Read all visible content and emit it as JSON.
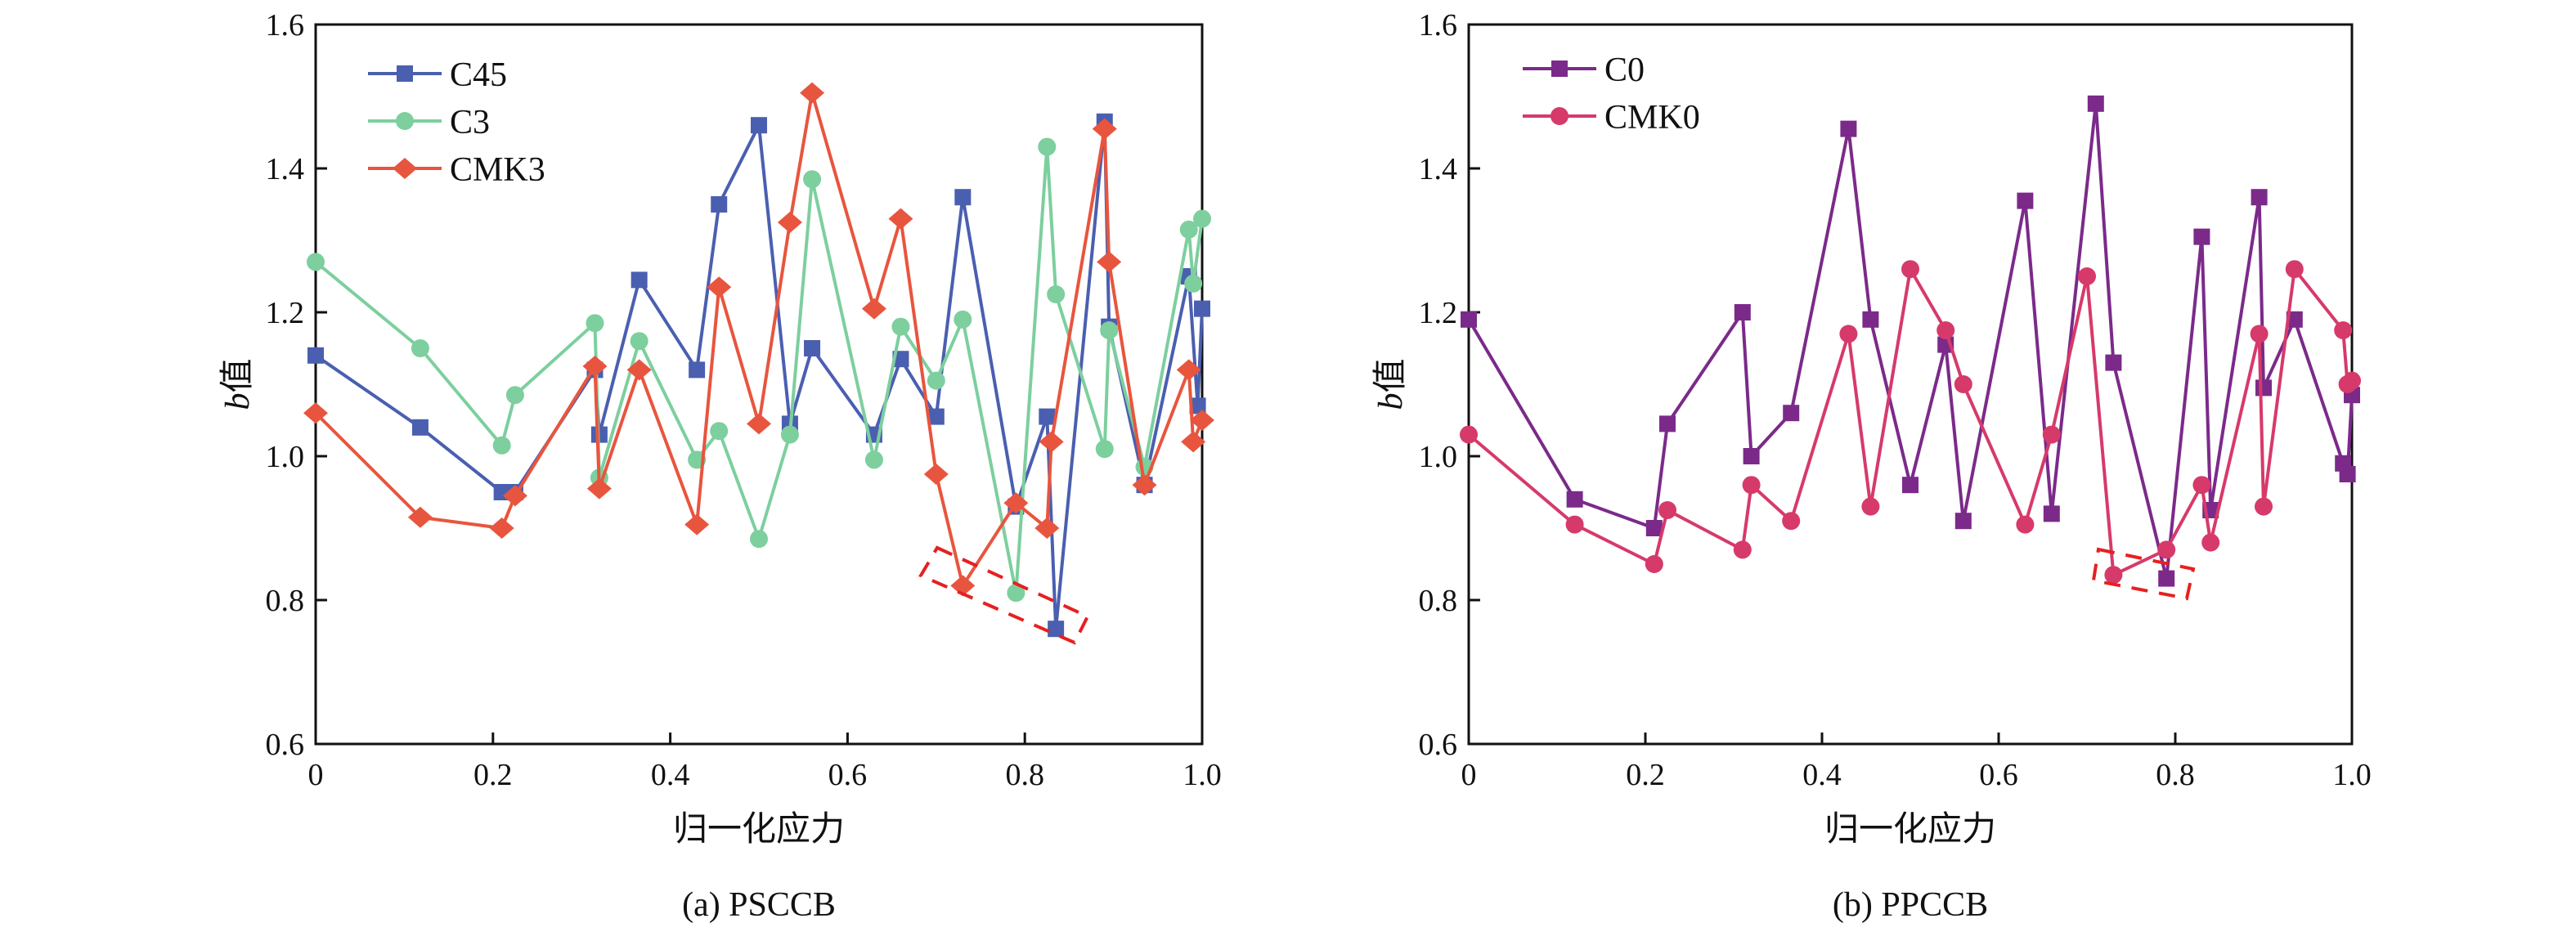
{
  "chart_data": [
    {
      "type": "line",
      "caption": "(a) PSCCB",
      "xlabel": "归一化应力",
      "ylabel_italic": "b",
      "ylabel_rest": "值",
      "xlim": [
        0,
        1.0
      ],
      "ylim": [
        0.6,
        1.6
      ],
      "xticks": [
        "0",
        "0.2",
        "0.4",
        "0.6",
        "0.8",
        "1.0"
      ],
      "yticks": [
        "0.6",
        "0.8",
        "1.0",
        "1.2",
        "1.4",
        "1.6"
      ],
      "legend": "top-left",
      "series": [
        {
          "name": "C45",
          "marker": "square",
          "color": "#4a5fb0",
          "x": [
            0,
            0.118,
            0.21,
            0.225,
            0.315,
            0.32,
            0.365,
            0.43,
            0.455,
            0.5,
            0.535,
            0.56,
            0.63,
            0.66,
            0.7,
            0.73,
            0.79,
            0.825,
            0.835,
            0.89,
            0.895,
            0.935,
            0.985,
            0.995,
            1.0
          ],
          "y": [
            1.14,
            1.04,
            0.95,
            0.95,
            1.12,
            1.03,
            1.245,
            1.12,
            1.35,
            1.46,
            1.045,
            1.15,
            1.03,
            1.135,
            1.055,
            1.36,
            0.93,
            1.055,
            0.76,
            1.465,
            1.18,
            0.96,
            1.25,
            1.07,
            1.205
          ]
        },
        {
          "name": "C3",
          "marker": "circle",
          "color": "#7dcf9e",
          "x": [
            0,
            0.118,
            0.21,
            0.225,
            0.315,
            0.32,
            0.365,
            0.43,
            0.455,
            0.5,
            0.535,
            0.56,
            0.63,
            0.66,
            0.7,
            0.73,
            0.79,
            0.825,
            0.835,
            0.89,
            0.895,
            0.935,
            0.985,
            0.99,
            1.0
          ],
          "y": [
            1.27,
            1.15,
            1.015,
            1.085,
            1.185,
            0.97,
            1.16,
            0.995,
            1.035,
            0.885,
            1.03,
            1.385,
            0.995,
            1.18,
            1.105,
            1.19,
            0.81,
            1.43,
            1.225,
            1.01,
            1.175,
            0.985,
            1.315,
            1.24,
            1.33
          ]
        },
        {
          "name": "CMK3",
          "marker": "diamond",
          "color": "#e8553e",
          "x": [
            0,
            0.118,
            0.21,
            0.225,
            0.315,
            0.32,
            0.365,
            0.43,
            0.455,
            0.5,
            0.535,
            0.56,
            0.63,
            0.66,
            0.7,
            0.73,
            0.79,
            0.825,
            0.83,
            0.89,
            0.895,
            0.935,
            0.985,
            0.99,
            1.0
          ],
          "y": [
            1.06,
            0.915,
            0.9,
            0.945,
            1.125,
            0.955,
            1.12,
            0.905,
            1.235,
            1.045,
            1.325,
            1.505,
            1.205,
            1.33,
            0.975,
            0.82,
            0.935,
            0.9,
            1.02,
            1.455,
            1.27,
            0.96,
            1.12,
            1.02,
            1.05
          ]
        }
      ]
    },
    {
      "type": "line",
      "caption": "(b) PPCCB",
      "xlabel": "归一化应力",
      "ylabel_italic": "b",
      "ylabel_rest": "值",
      "xlim": [
        0,
        1.0
      ],
      "ylim": [
        0.6,
        1.6
      ],
      "xticks": [
        "0",
        "0.2",
        "0.4",
        "0.6",
        "0.8",
        "1.0"
      ],
      "yticks": [
        "0.6",
        "0.8",
        "1.0",
        "1.2",
        "1.4",
        "1.6"
      ],
      "legend": "top-left",
      "series": [
        {
          "name": "C0",
          "marker": "square",
          "color": "#7b2a8a",
          "x": [
            0,
            0.12,
            0.21,
            0.225,
            0.31,
            0.32,
            0.365,
            0.43,
            0.455,
            0.5,
            0.54,
            0.56,
            0.63,
            0.66,
            0.71,
            0.73,
            0.79,
            0.83,
            0.84,
            0.895,
            0.9,
            0.935,
            0.99,
            0.995,
            1.0
          ],
          "y": [
            1.19,
            0.94,
            0.9,
            1.045,
            1.2,
            1.0,
            1.06,
            1.455,
            1.19,
            0.96,
            1.155,
            0.91,
            1.355,
            0.92,
            1.49,
            1.13,
            0.83,
            1.305,
            0.925,
            1.36,
            1.095,
            1.19,
            0.99,
            0.975,
            1.085
          ]
        },
        {
          "name": "CMK0",
          "marker": "circle",
          "color": "#d63a6a",
          "x": [
            0,
            0.12,
            0.21,
            0.225,
            0.31,
            0.32,
            0.365,
            0.43,
            0.455,
            0.5,
            0.54,
            0.56,
            0.63,
            0.66,
            0.7,
            0.73,
            0.79,
            0.83,
            0.84,
            0.895,
            0.9,
            0.935,
            0.99,
            0.995,
            1.0
          ],
          "y": [
            1.03,
            0.905,
            0.85,
            0.925,
            0.87,
            0.96,
            0.91,
            1.17,
            0.93,
            1.26,
            1.175,
            1.1,
            0.905,
            1.03,
            1.25,
            0.835,
            0.87,
            0.96,
            0.88,
            1.17,
            0.93,
            1.26,
            1.175,
            1.1,
            1.105
          ]
        }
      ]
    }
  ]
}
